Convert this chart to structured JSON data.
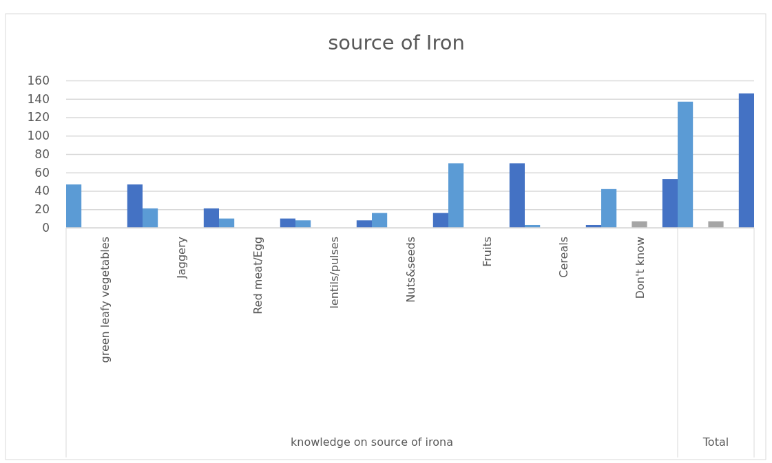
{
  "chart_data": {
    "type": "bar",
    "title": "source of Iron",
    "categories": [
      "green leafy vegetables",
      "Jaggery",
      "Red meat/Egg",
      "lentils/pulses",
      "Nuts&seeds",
      "Fruits",
      "Cereals",
      "Don't know",
      null
    ],
    "series": [
      {
        "color": "#5b9bd5",
        "values": [
          47,
          21,
          10,
          8,
          16,
          70,
          3,
          42,
          137
        ]
      },
      {
        "color": "#a5a5a5",
        "values": [
          null,
          null,
          null,
          null,
          null,
          null,
          null,
          7,
          7
        ]
      },
      {
        "color": "#4472c4",
        "values": [
          47,
          21,
          10,
          8,
          16,
          70,
          3,
          53,
          146
        ]
      }
    ],
    "ylim": [
      0,
      160
    ],
    "yticks": [
      0,
      20,
      40,
      60,
      80,
      100,
      120,
      140,
      160
    ],
    "grid": true,
    "annotations": [
      "knowledge on source of irona",
      "Total"
    ]
  }
}
